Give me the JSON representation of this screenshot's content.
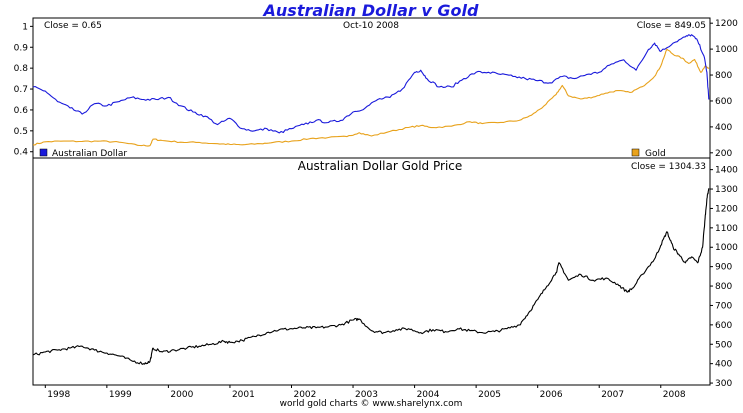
{
  "chart_data": [
    {
      "type": "line",
      "title": "Australian Dollar v Gold",
      "date_label": "Oct-10  2008",
      "left_close_label": "Close = 0.65",
      "right_close_label": "Close = 849.05",
      "y_left_ticks": [
        "1",
        "0.9",
        "0.8",
        "0.7",
        "0.6",
        "0.5",
        "0.4"
      ],
      "y_right_ticks": [
        "1200",
        "1000",
        "800",
        "600",
        "400",
        "200"
      ],
      "ylim_left": [
        0.37,
        1.04
      ],
      "ylim_right": [
        160,
        1240
      ],
      "x_range": [
        1997.8,
        2008.8
      ],
      "series": [
        {
          "name": "Australian Dollar",
          "axis": "left",
          "color": "#1a1adb",
          "points": [
            [
              1997.8,
              0.71
            ],
            [
              1998.0,
              0.69
            ],
            [
              1998.2,
              0.64
            ],
            [
              1998.4,
              0.61
            ],
            [
              1998.6,
              0.58
            ],
            [
              1998.8,
              0.63
            ],
            [
              1999.0,
              0.62
            ],
            [
              1999.2,
              0.64
            ],
            [
              1999.4,
              0.66
            ],
            [
              1999.6,
              0.65
            ],
            [
              1999.8,
              0.65
            ],
            [
              2000.0,
              0.66
            ],
            [
              2000.2,
              0.62
            ],
            [
              2000.4,
              0.59
            ],
            [
              2000.6,
              0.57
            ],
            [
              2000.8,
              0.53
            ],
            [
              2001.0,
              0.56
            ],
            [
              2001.2,
              0.51
            ],
            [
              2001.4,
              0.5
            ],
            [
              2001.6,
              0.51
            ],
            [
              2001.8,
              0.49
            ],
            [
              2002.0,
              0.51
            ],
            [
              2002.2,
              0.53
            ],
            [
              2002.4,
              0.55
            ],
            [
              2002.6,
              0.54
            ],
            [
              2002.8,
              0.55
            ],
            [
              2003.0,
              0.59
            ],
            [
              2003.2,
              0.61
            ],
            [
              2003.4,
              0.65
            ],
            [
              2003.6,
              0.66
            ],
            [
              2003.8,
              0.7
            ],
            [
              2004.0,
              0.78
            ],
            [
              2004.1,
              0.79
            ],
            [
              2004.2,
              0.75
            ],
            [
              2004.4,
              0.71
            ],
            [
              2004.6,
              0.71
            ],
            [
              2004.8,
              0.75
            ],
            [
              2005.0,
              0.78
            ],
            [
              2005.2,
              0.78
            ],
            [
              2005.4,
              0.77
            ],
            [
              2005.6,
              0.76
            ],
            [
              2005.8,
              0.75
            ],
            [
              2006.0,
              0.74
            ],
            [
              2006.2,
              0.73
            ],
            [
              2006.4,
              0.76
            ],
            [
              2006.6,
              0.75
            ],
            [
              2006.8,
              0.77
            ],
            [
              2007.0,
              0.78
            ],
            [
              2007.2,
              0.82
            ],
            [
              2007.4,
              0.84
            ],
            [
              2007.6,
              0.79
            ],
            [
              2007.8,
              0.89
            ],
            [
              2007.9,
              0.92
            ],
            [
              2008.0,
              0.88
            ],
            [
              2008.2,
              0.92
            ],
            [
              2008.4,
              0.95
            ],
            [
              2008.5,
              0.96
            ],
            [
              2008.6,
              0.93
            ],
            [
              2008.7,
              0.86
            ],
            [
              2008.75,
              0.78
            ],
            [
              2008.78,
              0.65
            ]
          ]
        },
        {
          "name": "Gold",
          "axis": "right",
          "color": "#e8a21c",
          "points": [
            [
              1997.8,
              262
            ],
            [
              1998.0,
              285
            ],
            [
              1998.3,
              290
            ],
            [
              1998.6,
              288
            ],
            [
              1998.9,
              290
            ],
            [
              1999.2,
              282
            ],
            [
              1999.5,
              258
            ],
            [
              1999.7,
              255
            ],
            [
              1999.75,
              305
            ],
            [
              1999.9,
              295
            ],
            [
              2000.2,
              282
            ],
            [
              2000.5,
              280
            ],
            [
              2000.8,
              270
            ],
            [
              2001.0,
              265
            ],
            [
              2001.2,
              262
            ],
            [
              2001.5,
              270
            ],
            [
              2001.7,
              280
            ],
            [
              2002.0,
              290
            ],
            [
              2002.3,
              310
            ],
            [
              2002.6,
              318
            ],
            [
              2002.9,
              325
            ],
            [
              2003.1,
              355
            ],
            [
              2003.3,
              330
            ],
            [
              2003.6,
              365
            ],
            [
              2003.9,
              395
            ],
            [
              2004.1,
              410
            ],
            [
              2004.3,
              395
            ],
            [
              2004.6,
              405
            ],
            [
              2004.9,
              440
            ],
            [
              2005.1,
              425
            ],
            [
              2005.4,
              435
            ],
            [
              2005.7,
              450
            ],
            [
              2005.9,
              490
            ],
            [
              2006.1,
              560
            ],
            [
              2006.3,
              650
            ],
            [
              2006.4,
              720
            ],
            [
              2006.5,
              640
            ],
            [
              2006.7,
              615
            ],
            [
              2006.9,
              630
            ],
            [
              2007.1,
              660
            ],
            [
              2007.3,
              680
            ],
            [
              2007.5,
              665
            ],
            [
              2007.7,
              710
            ],
            [
              2007.9,
              790
            ],
            [
              2008.0,
              870
            ],
            [
              2008.1,
              1000
            ],
            [
              2008.2,
              960
            ],
            [
              2008.35,
              930
            ],
            [
              2008.45,
              890
            ],
            [
              2008.55,
              920
            ],
            [
              2008.65,
              820
            ],
            [
              2008.72,
              870
            ],
            [
              2008.78,
              849
            ]
          ]
        }
      ],
      "legend": [
        {
          "label": "Australian Dollar",
          "color": "#1a1adb"
        },
        {
          "label": "Gold",
          "color": "#e8a21c"
        }
      ]
    },
    {
      "type": "line",
      "title": "Australian Dollar Gold Price",
      "close_label": "Close = 1304.33",
      "y_ticks": [
        "1400",
        "1300",
        "1200",
        "1100",
        "1000",
        "900",
        "800",
        "700",
        "600",
        "500",
        "400",
        "300"
      ],
      "ylim": [
        290,
        1460
      ],
      "x_range": [
        1997.8,
        2008.8
      ],
      "series": [
        {
          "name": "Australian Dollar Gold Price",
          "color": "#000000",
          "points": [
            [
              1997.8,
              445
            ],
            [
              1998.0,
              460
            ],
            [
              1998.2,
              470
            ],
            [
              1998.4,
              480
            ],
            [
              1998.6,
              490
            ],
            [
              1998.8,
              470
            ],
            [
              1999.0,
              455
            ],
            [
              1999.2,
              440
            ],
            [
              1999.4,
              415
            ],
            [
              1999.6,
              400
            ],
            [
              1999.7,
              410
            ],
            [
              1999.75,
              480
            ],
            [
              1999.9,
              460
            ],
            [
              2000.1,
              470
            ],
            [
              2000.3,
              480
            ],
            [
              2000.5,
              490
            ],
            [
              2000.7,
              500
            ],
            [
              2000.9,
              515
            ],
            [
              2001.0,
              510
            ],
            [
              2001.2,
              520
            ],
            [
              2001.4,
              540
            ],
            [
              2001.6,
              560
            ],
            [
              2001.8,
              575
            ],
            [
              2002.0,
              580
            ],
            [
              2002.2,
              585
            ],
            [
              2002.4,
              585
            ],
            [
              2002.6,
              590
            ],
            [
              2002.8,
              600
            ],
            [
              2003.0,
              625
            ],
            [
              2003.1,
              630
            ],
            [
              2003.3,
              570
            ],
            [
              2003.5,
              560
            ],
            [
              2003.7,
              575
            ],
            [
              2003.9,
              580
            ],
            [
              2004.1,
              560
            ],
            [
              2004.3,
              575
            ],
            [
              2004.5,
              565
            ],
            [
              2004.7,
              580
            ],
            [
              2004.9,
              570
            ],
            [
              2005.1,
              560
            ],
            [
              2005.3,
              565
            ],
            [
              2005.5,
              580
            ],
            [
              2005.7,
              600
            ],
            [
              2005.85,
              660
            ],
            [
              2006.0,
              730
            ],
            [
              2006.15,
              800
            ],
            [
              2006.3,
              870
            ],
            [
              2006.35,
              920
            ],
            [
              2006.5,
              830
            ],
            [
              2006.7,
              860
            ],
            [
              2006.9,
              830
            ],
            [
              2007.1,
              840
            ],
            [
              2007.3,
              810
            ],
            [
              2007.45,
              770
            ],
            [
              2007.55,
              790
            ],
            [
              2007.7,
              860
            ],
            [
              2007.9,
              940
            ],
            [
              2008.0,
              1010
            ],
            [
              2008.1,
              1080
            ],
            [
              2008.2,
              1000
            ],
            [
              2008.3,
              960
            ],
            [
              2008.4,
              920
            ],
            [
              2008.5,
              950
            ],
            [
              2008.6,
              920
            ],
            [
              2008.68,
              1000
            ],
            [
              2008.72,
              1150
            ],
            [
              2008.75,
              1250
            ],
            [
              2008.78,
              1304
            ]
          ]
        }
      ],
      "xaxis_ticks": [
        "1998",
        "1999",
        "2000",
        "2001",
        "2002",
        "2003",
        "2004",
        "2005",
        "2006",
        "2007",
        "2008"
      ],
      "x_tick_positions": [
        1998,
        1999,
        2000,
        2001,
        2002,
        2003,
        2004,
        2005,
        2006,
        2007,
        2008
      ]
    }
  ],
  "footer": "world gold charts © www.sharelynx.com"
}
